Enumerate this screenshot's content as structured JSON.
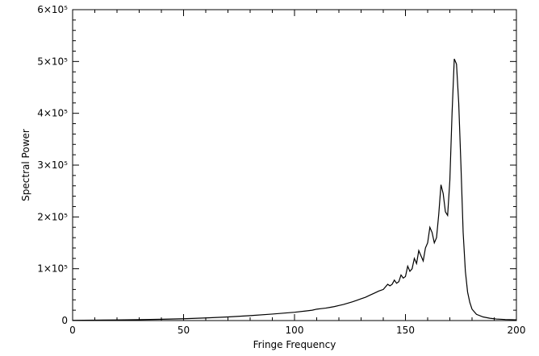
{
  "chart_data": {
    "type": "line",
    "title": "",
    "xlabel": "Fringe Frequency",
    "ylabel": "Spectral Power",
    "xlim": [
      0,
      200
    ],
    "ylim": [
      0,
      600000
    ],
    "grid": false,
    "x_ticks": [
      {
        "value": 0,
        "label": "0"
      },
      {
        "value": 50,
        "label": "50"
      },
      {
        "value": 100,
        "label": "100"
      },
      {
        "value": 150,
        "label": "150"
      },
      {
        "value": 200,
        "label": "200"
      }
    ],
    "y_ticks": [
      {
        "value": 0,
        "label": "0"
      },
      {
        "value": 100000,
        "label": "1×10⁵"
      },
      {
        "value": 200000,
        "label": "2×10⁵"
      },
      {
        "value": 300000,
        "label": "3×10⁵"
      },
      {
        "value": 400000,
        "label": "4×10⁵"
      },
      {
        "value": 500000,
        "label": "5×10⁵"
      },
      {
        "value": 600000,
        "label": "6×10⁵"
      }
    ],
    "series": [
      {
        "x": [
          0,
          10,
          20,
          30,
          40,
          50,
          60,
          70,
          80,
          90,
          100,
          105,
          108,
          110,
          112,
          114,
          116,
          118,
          120,
          122,
          124,
          126,
          128,
          130,
          132,
          134,
          136,
          138,
          140,
          142,
          143,
          144,
          145,
          146,
          147,
          148,
          149,
          150,
          151,
          152,
          153,
          154,
          155,
          156,
          157,
          158,
          159,
          160,
          161,
          162,
          163,
          164,
          165,
          166,
          167,
          168,
          169,
          170,
          171,
          172,
          173,
          174,
          175,
          176,
          177,
          178,
          179,
          180,
          182,
          185,
          188,
          191,
          195,
          200
        ],
        "values": [
          500,
          800,
          1200,
          1800,
          2500,
          3500,
          5000,
          7000,
          9500,
          12500,
          16000,
          18500,
          20000,
          22000,
          23000,
          24000,
          25500,
          27000,
          29000,
          31000,
          33500,
          36000,
          39000,
          42000,
          45000,
          49000,
          53000,
          57000,
          60000,
          70000,
          67000,
          70000,
          78000,
          72000,
          75000,
          88000,
          82000,
          85000,
          105000,
          95000,
          100000,
          120000,
          110000,
          135000,
          125000,
          115000,
          140000,
          150000,
          180000,
          170000,
          150000,
          160000,
          205000,
          262000,
          245000,
          210000,
          203000,
          270000,
          400000,
          505000,
          495000,
          420000,
          300000,
          170000,
          95000,
          55000,
          35000,
          22000,
          12000,
          7000,
          4500,
          3000,
          2000,
          1500
        ]
      }
    ]
  }
}
